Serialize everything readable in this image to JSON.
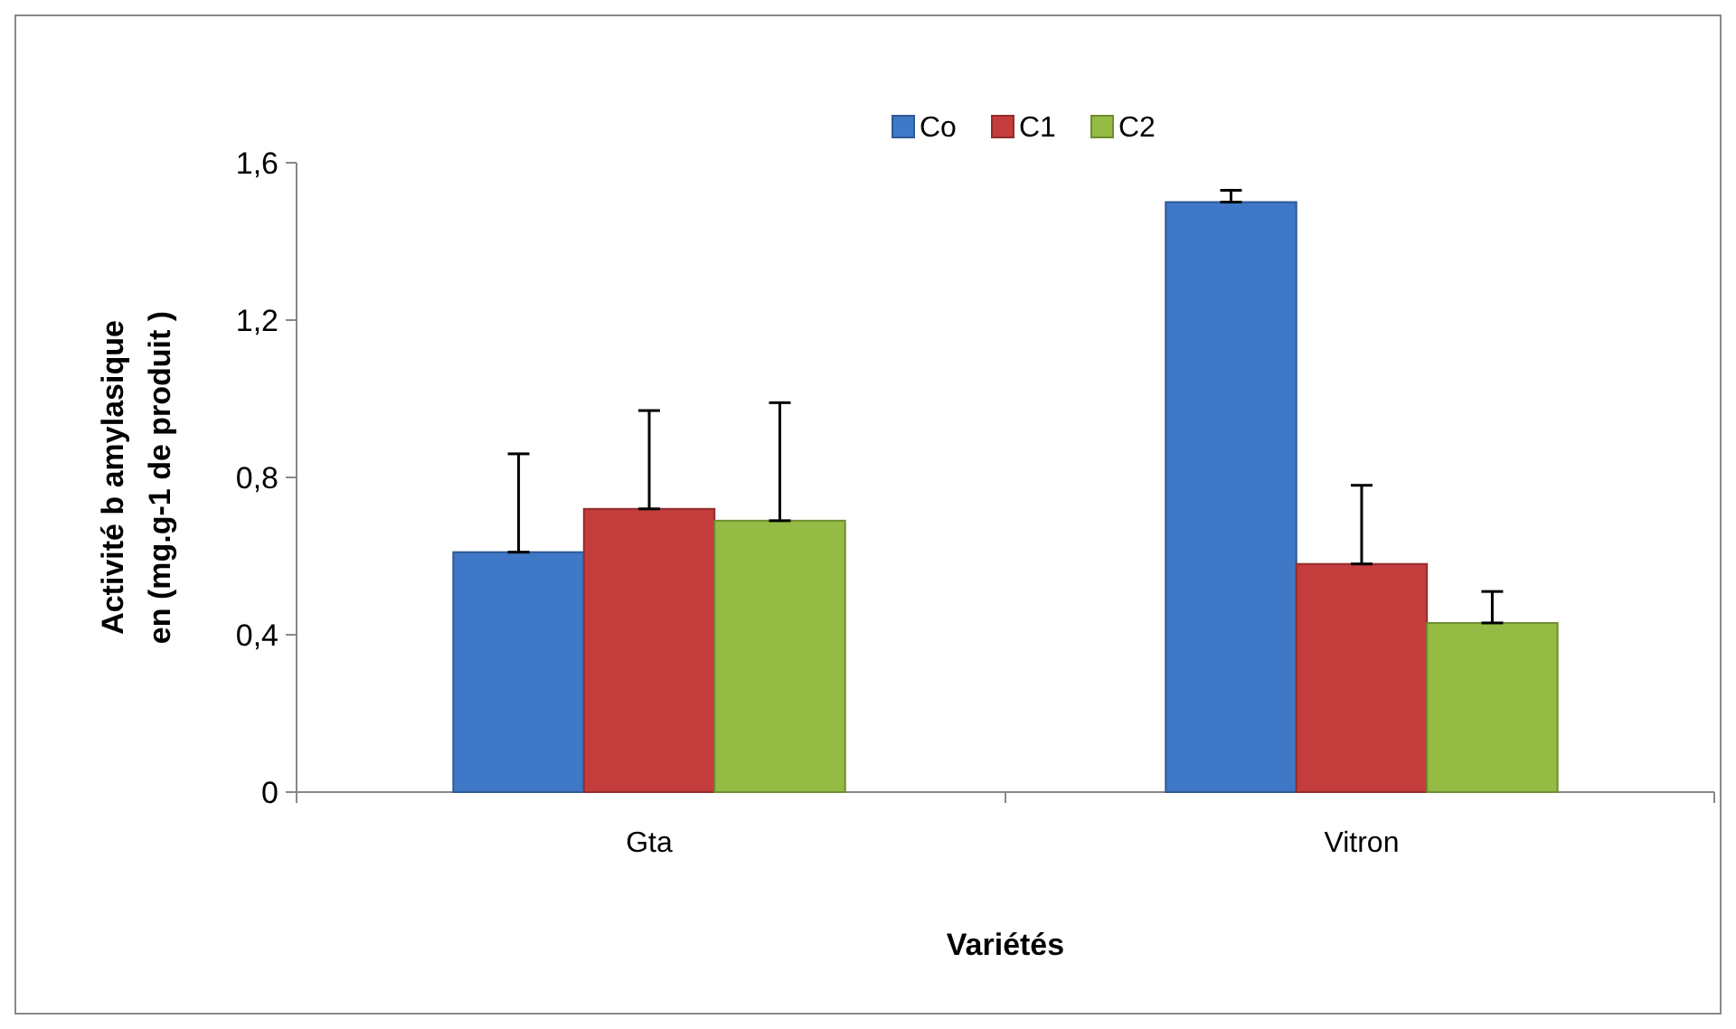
{
  "chart_data": {
    "type": "bar",
    "xlabel": "Variétés",
    "ylabel": "Activité b amylasique en (mg.g-1 de produit )",
    "categories": [
      "Gta",
      "Vitron"
    ],
    "series": [
      {
        "name": "Co",
        "color": "#3f78c6",
        "values": [
          0.61,
          1.5
        ],
        "errors": [
          [
            0.61,
            0.86
          ],
          [
            1.5,
            1.53
          ]
        ]
      },
      {
        "name": "C1",
        "color": "#c43c3c",
        "values": [
          0.72,
          0.58
        ],
        "errors": [
          [
            0.72,
            0.97
          ],
          [
            0.58,
            0.78
          ]
        ]
      },
      {
        "name": "C2",
        "color": "#94bb43",
        "values": [
          0.69,
          0.43
        ],
        "errors": [
          [
            0.69,
            0.99
          ],
          [
            0.43,
            0.51
          ]
        ]
      }
    ],
    "ylim": [
      0,
      1.6
    ],
    "yticks": [
      0,
      {
        "value": 0.4,
        "label": "0,4"
      },
      {
        "value": 0.8,
        "label": "0,8"
      },
      {
        "value": 1.2,
        "label": "1,2"
      },
      {
        "value": 1.6,
        "label": "1,6"
      }
    ],
    "grid": false,
    "legend": "top"
  }
}
